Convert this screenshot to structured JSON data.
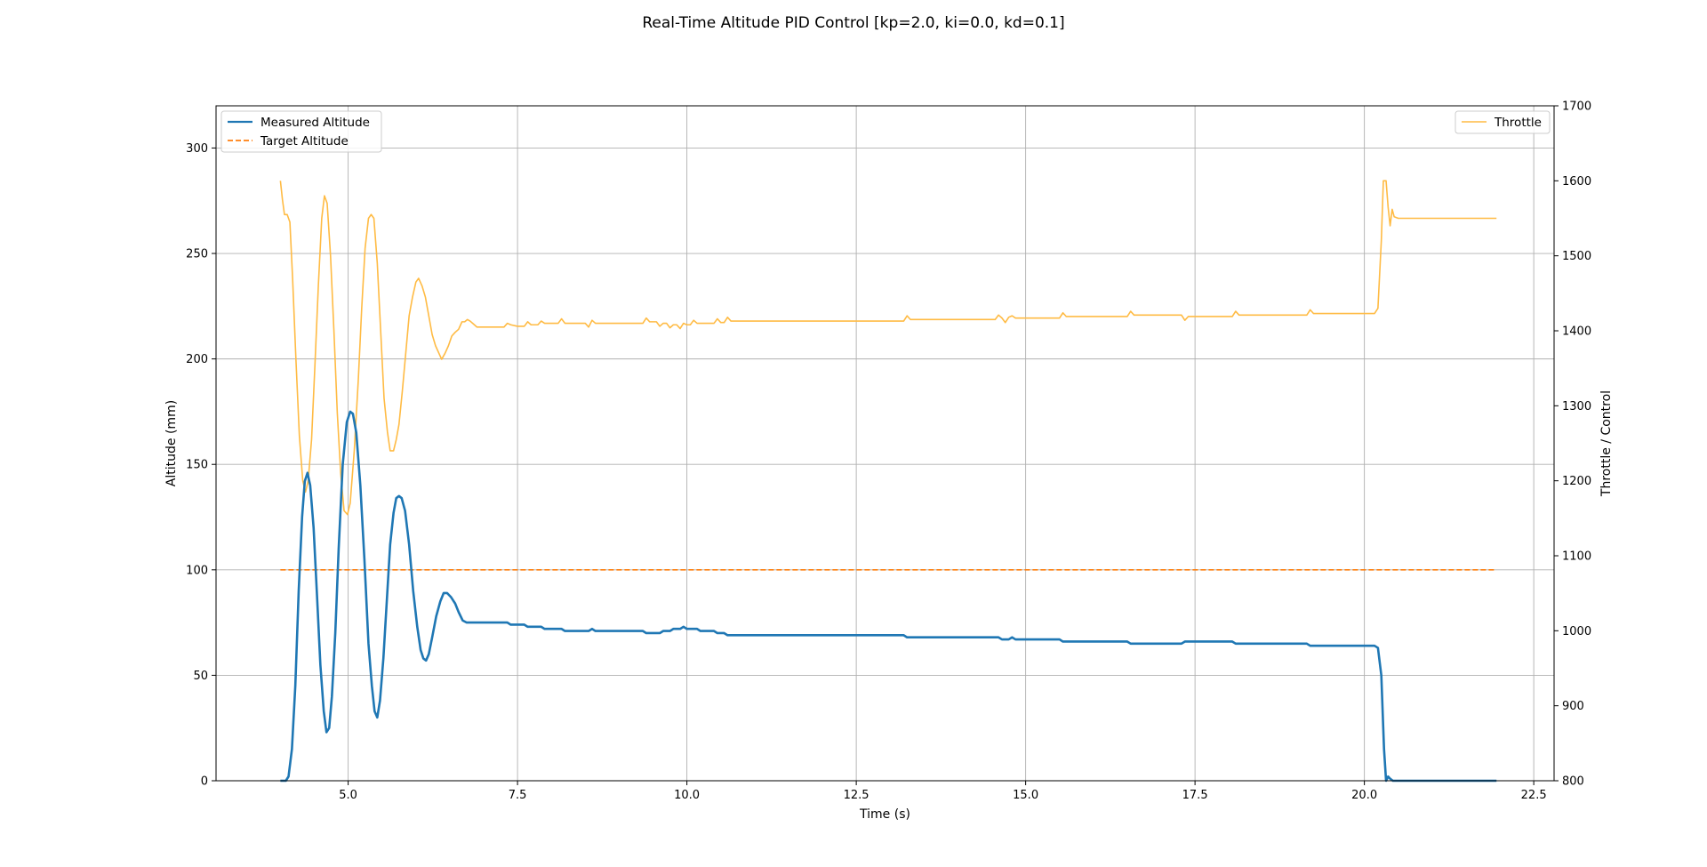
{
  "chart_data": {
    "type": "line",
    "title": "Real-Time Altitude PID Control [kp=2.0, ki=0.0, kd=0.1]",
    "xlabel": "Time (s)",
    "ylabel": "Altitude (mm)",
    "y2label": "Throttle / Control",
    "xlim": [
      3.05,
      22.8
    ],
    "ylim": [
      0,
      320
    ],
    "y2lim": [
      800,
      1700
    ],
    "x_ticks": [
      5.0,
      7.5,
      10.0,
      12.5,
      15.0,
      17.5,
      20.0,
      22.5
    ],
    "x_tick_labels": [
      "5.0",
      "7.5",
      "10.0",
      "12.5",
      "15.0",
      "17.5",
      "20.0",
      "22.5"
    ],
    "y_ticks": [
      0,
      50,
      100,
      150,
      200,
      250,
      300
    ],
    "y_tick_labels": [
      "0",
      "50",
      "100",
      "150",
      "200",
      "250",
      "300"
    ],
    "y2_ticks": [
      800,
      900,
      1000,
      1100,
      1200,
      1300,
      1400,
      1500,
      1600,
      1700
    ],
    "y2_tick_labels": [
      "800",
      "900",
      "1000",
      "1100",
      "1200",
      "1300",
      "1400",
      "1500",
      "1600",
      "1700"
    ],
    "grid": true,
    "legend_left_placement": "upper-left",
    "legend_right_placement": "upper-right",
    "series": [
      {
        "name": "Measured Altitude",
        "axis": "left",
        "color": "#1f77b4",
        "style": "solid",
        "points": [
          [
            4.0,
            0
          ],
          [
            4.08,
            0
          ],
          [
            4.12,
            2
          ],
          [
            4.17,
            15
          ],
          [
            4.22,
            45
          ],
          [
            4.27,
            90
          ],
          [
            4.32,
            125
          ],
          [
            4.36,
            142
          ],
          [
            4.4,
            146
          ],
          [
            4.44,
            140
          ],
          [
            4.49,
            120
          ],
          [
            4.54,
            88
          ],
          [
            4.59,
            55
          ],
          [
            4.64,
            33
          ],
          [
            4.68,
            23
          ],
          [
            4.72,
            25
          ],
          [
            4.76,
            40
          ],
          [
            4.81,
            70
          ],
          [
            4.86,
            110
          ],
          [
            4.92,
            150
          ],
          [
            4.98,
            170
          ],
          [
            5.03,
            175
          ],
          [
            5.07,
            174
          ],
          [
            5.12,
            165
          ],
          [
            5.18,
            140
          ],
          [
            5.24,
            105
          ],
          [
            5.3,
            65
          ],
          [
            5.35,
            45
          ],
          [
            5.39,
            33
          ],
          [
            5.43,
            30
          ],
          [
            5.47,
            38
          ],
          [
            5.52,
            58
          ],
          [
            5.57,
            85
          ],
          [
            5.62,
            112
          ],
          [
            5.67,
            127
          ],
          [
            5.71,
            134
          ],
          [
            5.75,
            135
          ],
          [
            5.79,
            134
          ],
          [
            5.84,
            128
          ],
          [
            5.9,
            112
          ],
          [
            5.96,
            90
          ],
          [
            6.02,
            73
          ],
          [
            6.07,
            62
          ],
          [
            6.11,
            58
          ],
          [
            6.15,
            57
          ],
          [
            6.19,
            60
          ],
          [
            6.24,
            68
          ],
          [
            6.3,
            78
          ],
          [
            6.36,
            85
          ],
          [
            6.41,
            89
          ],
          [
            6.46,
            89
          ],
          [
            6.52,
            87
          ],
          [
            6.58,
            84
          ],
          [
            6.63,
            80
          ],
          [
            6.69,
            76
          ],
          [
            6.75,
            75
          ],
          [
            6.85,
            75
          ],
          [
            7.0,
            75
          ],
          [
            7.15,
            75
          ],
          [
            7.35,
            75
          ],
          [
            7.4,
            74
          ],
          [
            7.6,
            74
          ],
          [
            7.65,
            73
          ],
          [
            7.85,
            73
          ],
          [
            7.9,
            72
          ],
          [
            8.15,
            72
          ],
          [
            8.2,
            71
          ],
          [
            8.55,
            71
          ],
          [
            8.6,
            72
          ],
          [
            8.65,
            71
          ],
          [
            9.0,
            71
          ],
          [
            9.35,
            71
          ],
          [
            9.4,
            70
          ],
          [
            9.6,
            70
          ],
          [
            9.65,
            71
          ],
          [
            9.75,
            71
          ],
          [
            9.8,
            72
          ],
          [
            9.9,
            72
          ],
          [
            9.95,
            73
          ],
          [
            10.0,
            72
          ],
          [
            10.15,
            72
          ],
          [
            10.2,
            71
          ],
          [
            10.4,
            71
          ],
          [
            10.45,
            70
          ],
          [
            10.55,
            70
          ],
          [
            10.6,
            69
          ],
          [
            11.0,
            69
          ],
          [
            12.0,
            69
          ],
          [
            13.0,
            69
          ],
          [
            13.2,
            69
          ],
          [
            13.25,
            68
          ],
          [
            14.0,
            68
          ],
          [
            14.6,
            68
          ],
          [
            14.65,
            67
          ],
          [
            14.75,
            67
          ],
          [
            14.8,
            68
          ],
          [
            14.85,
            67
          ],
          [
            15.5,
            67
          ],
          [
            15.55,
            66
          ],
          [
            16.5,
            66
          ],
          [
            16.55,
            65
          ],
          [
            17.3,
            65
          ],
          [
            17.35,
            66
          ],
          [
            18.05,
            66
          ],
          [
            18.1,
            65
          ],
          [
            19.15,
            65
          ],
          [
            19.2,
            64
          ],
          [
            20.0,
            64
          ],
          [
            20.15,
            64
          ],
          [
            20.2,
            63
          ],
          [
            20.25,
            50
          ],
          [
            20.29,
            15
          ],
          [
            20.32,
            0
          ],
          [
            20.35,
            2
          ],
          [
            20.38,
            1
          ],
          [
            20.42,
            0
          ],
          [
            21.0,
            0
          ],
          [
            21.5,
            0
          ],
          [
            21.95,
            0
          ]
        ]
      },
      {
        "name": "Target Altitude",
        "axis": "left",
        "color": "#ff7f0e",
        "style": "dashed",
        "points": [
          [
            4.0,
            100
          ],
          [
            21.95,
            100
          ]
        ]
      },
      {
        "name": "Throttle",
        "axis": "right",
        "color": "#ffbb44",
        "style": "solid",
        "points": [
          [
            4.0,
            1600
          ],
          [
            4.03,
            1575
          ],
          [
            4.06,
            1555
          ],
          [
            4.1,
            1555
          ],
          [
            4.14,
            1545
          ],
          [
            4.18,
            1470
          ],
          [
            4.23,
            1360
          ],
          [
            4.28,
            1260
          ],
          [
            4.33,
            1200
          ],
          [
            4.37,
            1185
          ],
          [
            4.41,
            1200
          ],
          [
            4.46,
            1255
          ],
          [
            4.51,
            1355
          ],
          [
            4.56,
            1460
          ],
          [
            4.61,
            1550
          ],
          [
            4.65,
            1580
          ],
          [
            4.69,
            1570
          ],
          [
            4.74,
            1500
          ],
          [
            4.79,
            1400
          ],
          [
            4.84,
            1290
          ],
          [
            4.89,
            1210
          ],
          [
            4.94,
            1160
          ],
          [
            4.99,
            1155
          ],
          [
            5.03,
            1170
          ],
          [
            5.09,
            1240
          ],
          [
            5.15,
            1335
          ],
          [
            5.2,
            1430
          ],
          [
            5.25,
            1510
          ],
          [
            5.3,
            1550
          ],
          [
            5.34,
            1555
          ],
          [
            5.38,
            1550
          ],
          [
            5.43,
            1490
          ],
          [
            5.48,
            1400
          ],
          [
            5.53,
            1310
          ],
          [
            5.58,
            1265
          ],
          [
            5.62,
            1240
          ],
          [
            5.67,
            1240
          ],
          [
            5.71,
            1255
          ],
          [
            5.75,
            1275
          ],
          [
            5.8,
            1320
          ],
          [
            5.85,
            1370
          ],
          [
            5.9,
            1420
          ],
          [
            5.95,
            1445
          ],
          [
            6.0,
            1465
          ],
          [
            6.04,
            1470
          ],
          [
            6.09,
            1460
          ],
          [
            6.14,
            1445
          ],
          [
            6.19,
            1420
          ],
          [
            6.24,
            1395
          ],
          [
            6.29,
            1380
          ],
          [
            6.34,
            1370
          ],
          [
            6.38,
            1362
          ],
          [
            6.43,
            1370
          ],
          [
            6.48,
            1380
          ],
          [
            6.53,
            1393
          ],
          [
            6.58,
            1398
          ],
          [
            6.63,
            1402
          ],
          [
            6.68,
            1412
          ],
          [
            6.72,
            1412
          ],
          [
            6.76,
            1415
          ],
          [
            6.8,
            1413
          ],
          [
            6.85,
            1409
          ],
          [
            6.9,
            1405
          ],
          [
            7.0,
            1405
          ],
          [
            7.15,
            1405
          ],
          [
            7.3,
            1405
          ],
          [
            7.35,
            1410
          ],
          [
            7.4,
            1408
          ],
          [
            7.5,
            1406
          ],
          [
            7.6,
            1406
          ],
          [
            7.65,
            1412
          ],
          [
            7.7,
            1408
          ],
          [
            7.8,
            1408
          ],
          [
            7.85,
            1413
          ],
          [
            7.9,
            1410
          ],
          [
            8.1,
            1410
          ],
          [
            8.15,
            1416
          ],
          [
            8.2,
            1410
          ],
          [
            8.5,
            1410
          ],
          [
            8.55,
            1405
          ],
          [
            8.6,
            1414
          ],
          [
            8.65,
            1410
          ],
          [
            9.0,
            1410
          ],
          [
            9.35,
            1410
          ],
          [
            9.4,
            1417
          ],
          [
            9.45,
            1412
          ],
          [
            9.55,
            1412
          ],
          [
            9.6,
            1406
          ],
          [
            9.65,
            1410
          ],
          [
            9.7,
            1410
          ],
          [
            9.75,
            1404
          ],
          [
            9.8,
            1408
          ],
          [
            9.85,
            1408
          ],
          [
            9.9,
            1403
          ],
          [
            9.95,
            1410
          ],
          [
            10.0,
            1408
          ],
          [
            10.05,
            1408
          ],
          [
            10.1,
            1414
          ],
          [
            10.15,
            1410
          ],
          [
            10.4,
            1410
          ],
          [
            10.45,
            1416
          ],
          [
            10.5,
            1411
          ],
          [
            10.55,
            1411
          ],
          [
            10.6,
            1418
          ],
          [
            10.65,
            1413
          ],
          [
            11.0,
            1413
          ],
          [
            12.0,
            1413
          ],
          [
            13.2,
            1413
          ],
          [
            13.25,
            1420
          ],
          [
            13.3,
            1415
          ],
          [
            14.0,
            1415
          ],
          [
            14.55,
            1415
          ],
          [
            14.6,
            1421
          ],
          [
            14.65,
            1417
          ],
          [
            14.7,
            1411
          ],
          [
            14.75,
            1418
          ],
          [
            14.8,
            1420
          ],
          [
            14.85,
            1417
          ],
          [
            15.5,
            1417
          ],
          [
            15.55,
            1424
          ],
          [
            15.6,
            1419
          ],
          [
            16.5,
            1419
          ],
          [
            16.55,
            1426
          ],
          [
            16.6,
            1421
          ],
          [
            17.3,
            1421
          ],
          [
            17.35,
            1414
          ],
          [
            17.4,
            1419
          ],
          [
            18.05,
            1419
          ],
          [
            18.1,
            1426
          ],
          [
            18.15,
            1421
          ],
          [
            19.15,
            1421
          ],
          [
            19.2,
            1428
          ],
          [
            19.25,
            1423
          ],
          [
            20.0,
            1423
          ],
          [
            20.15,
            1423
          ],
          [
            20.2,
            1430
          ],
          [
            20.25,
            1520
          ],
          [
            20.28,
            1600
          ],
          [
            20.32,
            1600
          ],
          [
            20.35,
            1565
          ],
          [
            20.38,
            1540
          ],
          [
            20.41,
            1562
          ],
          [
            20.44,
            1552
          ],
          [
            20.5,
            1550
          ],
          [
            21.0,
            1550
          ],
          [
            21.5,
            1550
          ],
          [
            21.95,
            1550
          ]
        ]
      }
    ]
  }
}
